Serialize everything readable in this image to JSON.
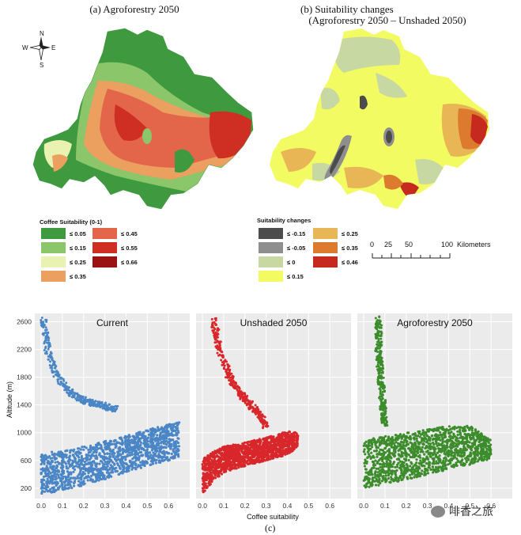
{
  "map_a": {
    "title": "(a) Agroforestry 2050",
    "compass": {
      "n": "N",
      "s": "S",
      "e": "E",
      "w": "W"
    },
    "legend_title": "Coffee Suitability (0-1)",
    "legend": [
      {
        "label": "≤ 0.05",
        "color": "#3f9a3f"
      },
      {
        "label": "≤ 0.15",
        "color": "#8cc66a"
      },
      {
        "label": "≤ 0.25",
        "color": "#e9f2b0"
      },
      {
        "label": "≤ 0.35",
        "color": "#eba05f"
      },
      {
        "label": "≤ 0.45",
        "color": "#e4664a"
      },
      {
        "label": "≤ 0.55",
        "color": "#cf2e22"
      },
      {
        "label": "≤ 0.66",
        "color": "#9b1212"
      }
    ]
  },
  "map_b": {
    "title_line1": "(b)     Suitability changes",
    "title_line2": "(Agroforestry 2050 – Unshaded 2050)",
    "legend_title": "Suitability changes",
    "legend": [
      {
        "label": "≤ -0.15",
        "color": "#4c4c4c"
      },
      {
        "label": "≤ -0.05",
        "color": "#8e8e8e"
      },
      {
        "label": "≤ 0",
        "color": "#c8d8a2"
      },
      {
        "label": "≤ 0.15",
        "color": "#f2fb62"
      },
      {
        "label": "≤ 0.25",
        "color": "#e8b655"
      },
      {
        "label": "≤ 0.35",
        "color": "#dc7a2e"
      },
      {
        "label": "≤ 0.46",
        "color": "#c62a1f"
      }
    ]
  },
  "scale_bar": {
    "ticks": [
      "0",
      "25",
      "50",
      "100"
    ],
    "unit": "Kilometers"
  },
  "scatter": {
    "panel_c_label": "(c)",
    "ylabel": "Altitude (m)",
    "xlabel": "Coffee suitability",
    "watermark": "啡香之旅"
  },
  "chart_data": [
    {
      "type": "scatter",
      "title": "Current",
      "xlabel": "Coffee suitability",
      "ylabel": "Altitude (m)",
      "xlim": [
        -0.03,
        0.7
      ],
      "ylim": [
        50,
        2720
      ],
      "xticks": [
        "0.0",
        "0.1",
        "0.2",
        "0.3",
        "0.4",
        "0.5",
        "0.6"
      ],
      "yticks": [
        "200",
        "600",
        "1000",
        "1400",
        "1800",
        "2200",
        "2600"
      ],
      "color": "#4a86c6",
      "upper_branch": {
        "x": [
          0.01,
          0.03,
          0.06,
          0.1,
          0.15,
          0.2,
          0.25,
          0.3,
          0.35
        ],
        "y": [
          2650,
          2200,
          1900,
          1700,
          1550,
          1470,
          1420,
          1380,
          1340
        ]
      },
      "main_band_top": {
        "x": [
          0.0,
          0.1,
          0.2,
          0.3,
          0.4,
          0.5,
          0.6,
          0.65
        ],
        "y": [
          700,
          750,
          800,
          880,
          960,
          1050,
          1120,
          1150
        ]
      },
      "main_band_bottom": {
        "x": [
          0.0,
          0.1,
          0.2,
          0.3,
          0.4,
          0.5,
          0.6,
          0.65
        ],
        "y": [
          120,
          160,
          240,
          330,
          430,
          520,
          600,
          640
        ]
      }
    },
    {
      "type": "scatter",
      "title": "Unshaded 2050",
      "xlabel": "Coffee suitability",
      "ylabel": "Altitude (m)",
      "xlim": [
        -0.03,
        0.7
      ],
      "ylim": [
        50,
        2720
      ],
      "xticks": [
        "0.0",
        "0.1",
        "0.2",
        "0.3",
        "0.4",
        "0.5",
        "0.6"
      ],
      "yticks": [
        "200",
        "600",
        "1000",
        "1400",
        "1800",
        "2200",
        "2600"
      ],
      "color": "#d8272b",
      "upper_branch": {
        "x": [
          0.05,
          0.08,
          0.12,
          0.17,
          0.22,
          0.27,
          0.3
        ],
        "y": [
          2650,
          2200,
          1850,
          1600,
          1420,
          1250,
          1100
        ]
      },
      "main_band_top": {
        "x": [
          0.0,
          0.05,
          0.1,
          0.2,
          0.3,
          0.4,
          0.45
        ],
        "y": [
          620,
          720,
          800,
          860,
          930,
          1020,
          1000
        ]
      },
      "main_band_bottom": {
        "x": [
          0.0,
          0.05,
          0.1,
          0.2,
          0.3,
          0.4,
          0.45
        ],
        "y": [
          120,
          300,
          420,
          520,
          600,
          680,
          800
        ]
      }
    },
    {
      "type": "scatter",
      "title": "Agroforestry 2050",
      "xlabel": "Coffee suitability",
      "ylabel": "Altitude (m)",
      "xlim": [
        -0.03,
        0.7
      ],
      "ylim": [
        50,
        2720
      ],
      "xticks": [
        "0.0",
        "0.1",
        "0.2",
        "0.3",
        "0.4",
        "0.5",
        "0.6"
      ],
      "yticks": [
        "200",
        "600",
        "1000",
        "1400",
        "1800",
        "2200",
        "2600"
      ],
      "color": "#3c8c2c",
      "upper_branch": {
        "x": [
          0.07,
          0.07,
          0.08,
          0.09,
          0.1
        ],
        "y": [
          2650,
          2200,
          1800,
          1400,
          1100
        ]
      },
      "main_band_top": {
        "x": [
          0.0,
          0.1,
          0.2,
          0.3,
          0.4,
          0.5,
          0.6
        ],
        "y": [
          900,
          950,
          1000,
          1050,
          1100,
          1100,
          900
        ]
      },
      "main_band_bottom": {
        "x": [
          0.0,
          0.1,
          0.2,
          0.3,
          0.4,
          0.5,
          0.6
        ],
        "y": [
          200,
          260,
          320,
          400,
          470,
          540,
          620
        ]
      }
    }
  ]
}
